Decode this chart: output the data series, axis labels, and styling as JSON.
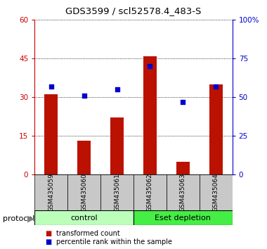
{
  "title": "GDS3599 / scl52578.4_483-S",
  "samples": [
    "GSM435059",
    "GSM435060",
    "GSM435061",
    "GSM435062",
    "GSM435063",
    "GSM435064"
  ],
  "red_values": [
    31,
    13,
    22,
    46,
    5,
    35
  ],
  "blue_values": [
    57,
    51,
    55,
    70,
    47,
    57
  ],
  "left_ylim": [
    0,
    60
  ],
  "right_ylim": [
    0,
    100
  ],
  "left_yticks": [
    0,
    15,
    30,
    45,
    60
  ],
  "right_yticks": [
    0,
    25,
    50,
    75,
    100
  ],
  "right_yticklabels": [
    "0",
    "25",
    "50",
    "75",
    "100%"
  ],
  "left_ycolor": "#cc0000",
  "right_ycolor": "#0000cc",
  "bar_color": "#bb1100",
  "dot_color": "#0000cc",
  "group1_label": "control",
  "group2_label": "Eset depletion",
  "group1_indices": [
    0,
    1,
    2
  ],
  "group2_indices": [
    3,
    4,
    5
  ],
  "protocol_label": "protocol",
  "legend1": "transformed count",
  "legend2": "percentile rank within the sample",
  "xlabel_area_color": "#c8c8c8",
  "group1_color": "#bbffbb",
  "group2_color": "#44ee44",
  "title_fontsize": 9.5,
  "tick_fontsize": 7.5,
  "label_fontsize": 7,
  "bar_width": 0.4
}
